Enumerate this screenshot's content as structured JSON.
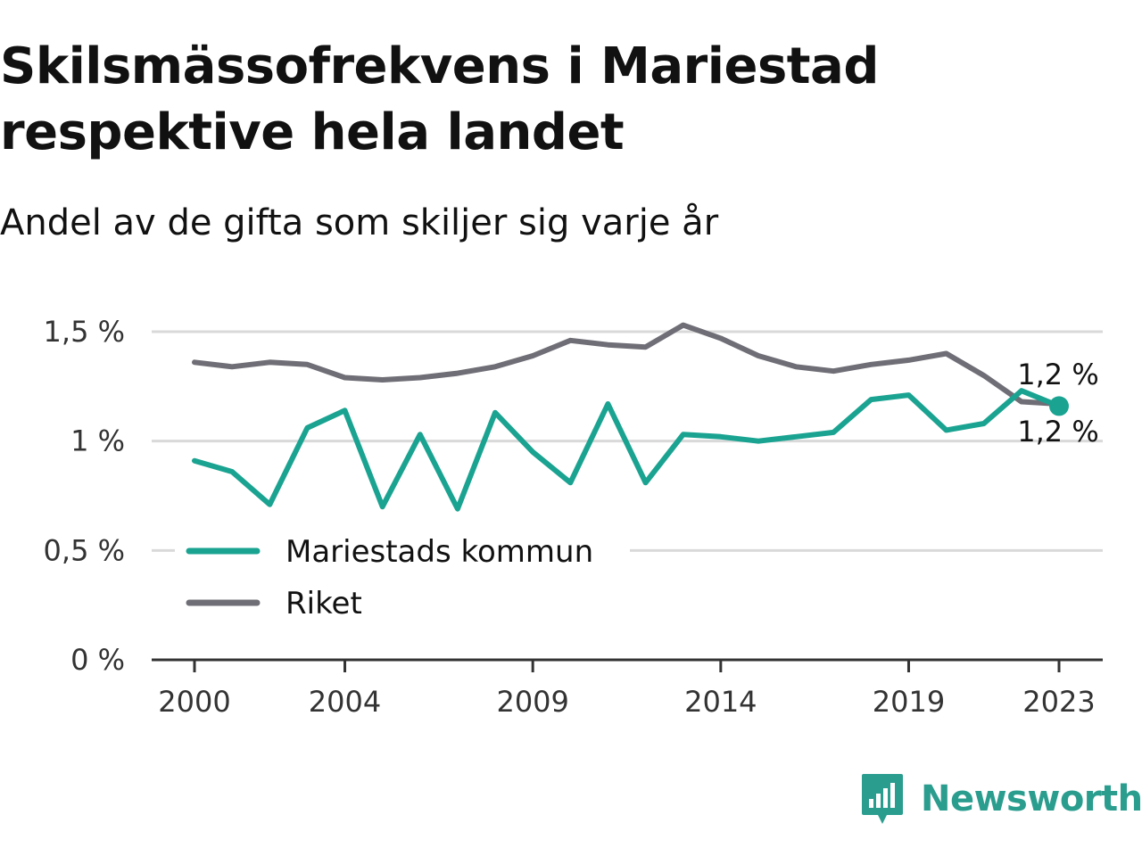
{
  "header": {
    "title": "Skilsmässofrekvens i Mariestad respektive hela landet",
    "subtitle": "Andel av de gifta som skiljer sig varje år"
  },
  "brand": {
    "name": "Newsworthy",
    "color": "#2a9d8f",
    "icon": "newsworthy-bar-chart-icon"
  },
  "colors": {
    "mariestad": "#1aa391",
    "riket": "#6f6e76",
    "grid": "#d9d9d9",
    "axis": "#333333"
  },
  "chart_data": {
    "type": "line",
    "x": [
      2000,
      2001,
      2002,
      2003,
      2004,
      2005,
      2006,
      2007,
      2008,
      2009,
      2010,
      2011,
      2012,
      2013,
      2014,
      2015,
      2016,
      2017,
      2018,
      2019,
      2020,
      2021,
      2022,
      2023
    ],
    "series": [
      {
        "name": "Mariestads kommun",
        "color": "#1aa391",
        "values": [
          0.91,
          0.86,
          0.71,
          1.06,
          1.14,
          0.7,
          1.03,
          0.69,
          1.13,
          0.95,
          0.81,
          1.17,
          0.81,
          1.03,
          1.02,
          1.0,
          1.02,
          1.04,
          1.19,
          1.21,
          1.05,
          1.08,
          1.23,
          1.16
        ],
        "end_label": "1,2 %"
      },
      {
        "name": "Riket",
        "color": "#6f6e76",
        "values": [
          1.36,
          1.34,
          1.36,
          1.35,
          1.29,
          1.28,
          1.29,
          1.31,
          1.34,
          1.39,
          1.46,
          1.44,
          1.43,
          1.53,
          1.47,
          1.39,
          1.34,
          1.32,
          1.35,
          1.37,
          1.4,
          1.3,
          1.18,
          1.17
        ],
        "end_label": "1,2 %"
      }
    ],
    "x_ticks": [
      2000,
      2004,
      2009,
      2014,
      2019,
      2023
    ],
    "y_ticks": [
      {
        "value": 0,
        "label": "0 %"
      },
      {
        "value": 0.5,
        "label": "0,5 %"
      },
      {
        "value": 1,
        "label": "1 %"
      },
      {
        "value": 1.5,
        "label": "1,5 %"
      }
    ],
    "ylim": [
      0,
      1.5
    ],
    "xlim": [
      2000,
      2023
    ],
    "grid": true,
    "legend": "bottom-left"
  }
}
